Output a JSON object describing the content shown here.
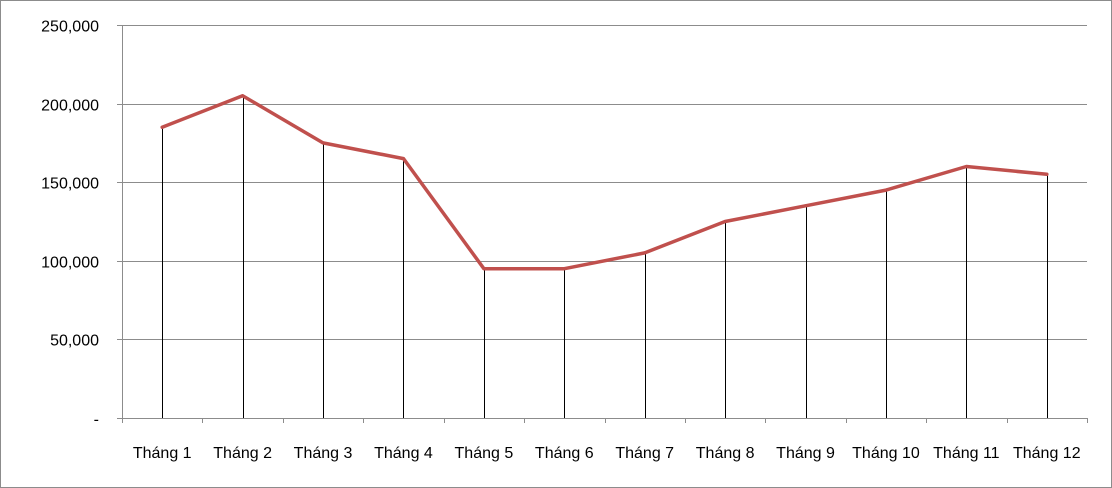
{
  "chart_data": {
    "type": "line",
    "title": "",
    "xlabel": "",
    "ylabel": "",
    "categories": [
      "Tháng 1",
      "Tháng 2",
      "Tháng 3",
      "Tháng 4",
      "Tháng 5",
      "Tháng 6",
      "Tháng 7",
      "Tháng 8",
      "Tháng 9",
      "Tháng 10",
      "Tháng 11",
      "Tháng 12"
    ],
    "series": [
      {
        "values": [
          185000,
          205000,
          175000,
          165000,
          95000,
          95000,
          105000,
          125000,
          135000,
          145000,
          160000,
          155000
        ],
        "color": "#c0504d"
      }
    ],
    "ylim": [
      0,
      250000
    ],
    "yticks": [
      0,
      50000,
      100000,
      150000,
      200000,
      250000
    ],
    "ytick_labels": [
      "-",
      "50,000",
      "100,000",
      "150,000",
      "200,000",
      "250,000"
    ],
    "drop_lines": true,
    "grid": "horizontal",
    "legend": "none",
    "colors": {
      "gridline": "#8c8c8c",
      "axis": "#8c8c8c",
      "drop_line": "#000000"
    }
  }
}
